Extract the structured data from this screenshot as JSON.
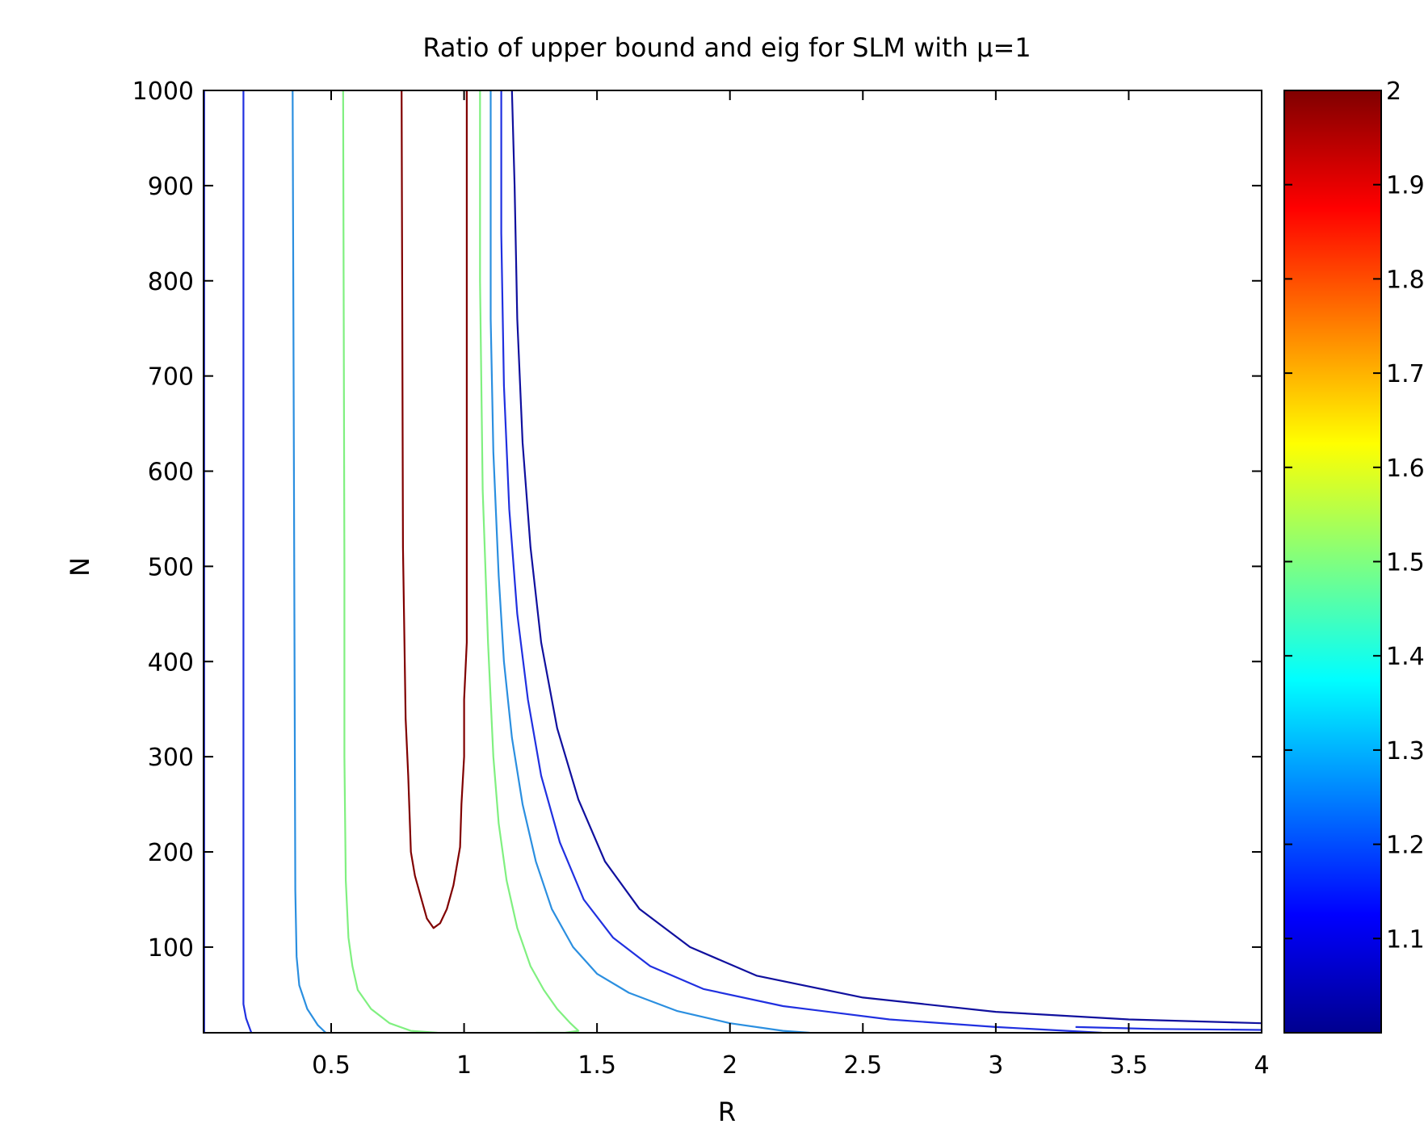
{
  "chart_data": {
    "type": "contour",
    "title": "Ratio of upper bound and eig for SLM with μ=1",
    "xlabel": "R",
    "ylabel": "N",
    "xlim": [
      0.02,
      4
    ],
    "ylim": [
      10,
      1000
    ],
    "grid": false,
    "x_ticks": [
      0.5,
      1,
      1.5,
      2,
      2.5,
      3,
      3.5,
      4
    ],
    "x_tick_labels": [
      "0.5",
      "1",
      "1.5",
      "2",
      "2.5",
      "3",
      "3.5",
      "4"
    ],
    "y_ticks": [
      100,
      200,
      300,
      400,
      500,
      600,
      700,
      800,
      900,
      1000
    ],
    "y_tick_labels": [
      "100",
      "200",
      "300",
      "400",
      "500",
      "600",
      "700",
      "800",
      "900",
      "1000"
    ],
    "colorbar": {
      "placement": "right",
      "range": [
        1.0,
        2.0
      ],
      "ticks": [
        1.1,
        1.2,
        1.3,
        1.4,
        1.5,
        1.6,
        1.7,
        1.8,
        1.9,
        2
      ],
      "tick_labels": [
        "1.1",
        "1.2",
        "1.3",
        "1.4",
        "1.5",
        "1.6",
        "1.7",
        "1.8",
        "1.9",
        "2"
      ],
      "colormap": "jet"
    },
    "contours": [
      {
        "level": 1.05,
        "color": "#0010d8",
        "points": [
          [
            0.022,
            1000
          ],
          [
            0.022,
            10
          ]
        ]
      },
      {
        "level": 1.15,
        "color": "#2030e0",
        "points": [
          [
            0.17,
            1000
          ],
          [
            0.17,
            500
          ],
          [
            0.17,
            40
          ],
          [
            0.18,
            25
          ],
          [
            0.2,
            10
          ]
        ]
      },
      {
        "level": 1.3,
        "color": "#2b8fe0",
        "points": [
          [
            0.355,
            1000
          ],
          [
            0.36,
            600
          ],
          [
            0.365,
            160
          ],
          [
            0.37,
            90
          ],
          [
            0.38,
            60
          ],
          [
            0.41,
            35
          ],
          [
            0.45,
            18
          ],
          [
            0.48,
            10
          ]
        ]
      },
      {
        "level": 1.5,
        "color": "#80f080",
        "points": [
          [
            0.545,
            1000
          ],
          [
            0.55,
            500
          ],
          [
            0.55,
            300
          ],
          [
            0.555,
            170
          ],
          [
            0.565,
            110
          ],
          [
            0.58,
            80
          ],
          [
            0.6,
            55
          ],
          [
            0.65,
            35
          ],
          [
            0.72,
            20
          ],
          [
            0.8,
            12
          ],
          [
            0.9,
            10
          ]
        ]
      },
      {
        "level": 2.0,
        "color": "#800000",
        "points": [
          [
            0.765,
            1000
          ],
          [
            0.77,
            520
          ],
          [
            0.78,
            340
          ],
          [
            0.79,
            280
          ],
          [
            0.8,
            200
          ],
          [
            0.815,
            175
          ],
          [
            0.84,
            150
          ],
          [
            0.86,
            130
          ],
          [
            0.885,
            120
          ],
          [
            0.91,
            125
          ],
          [
            0.935,
            140
          ],
          [
            0.96,
            165
          ],
          [
            0.985,
            205
          ],
          [
            0.99,
            250
          ],
          [
            1.0,
            300
          ],
          [
            1.0,
            360
          ],
          [
            1.01,
            420
          ],
          [
            1.01,
            1000
          ]
        ]
      },
      {
        "level": 1.5,
        "color": "#80f080",
        "points": [
          [
            1.06,
            1000
          ],
          [
            1.06,
            800
          ],
          [
            1.07,
            580
          ],
          [
            1.09,
            420
          ],
          [
            1.11,
            300
          ],
          [
            1.13,
            230
          ],
          [
            1.16,
            170
          ],
          [
            1.2,
            120
          ],
          [
            1.25,
            80
          ],
          [
            1.3,
            55
          ],
          [
            1.35,
            35
          ],
          [
            1.4,
            20
          ],
          [
            1.43,
            12
          ],
          [
            1.38,
            10
          ],
          [
            1.27,
            10
          ]
        ]
      },
      {
        "level": 1.3,
        "color": "#2b8fe0",
        "points": [
          [
            1.1,
            1000
          ],
          [
            1.1,
            760
          ],
          [
            1.11,
            620
          ],
          [
            1.13,
            490
          ],
          [
            1.15,
            400
          ],
          [
            1.18,
            320
          ],
          [
            1.22,
            250
          ],
          [
            1.27,
            190
          ],
          [
            1.33,
            140
          ],
          [
            1.41,
            100
          ],
          [
            1.5,
            72
          ],
          [
            1.62,
            52
          ],
          [
            1.8,
            33
          ],
          [
            2.0,
            20
          ],
          [
            2.2,
            12
          ],
          [
            2.3,
            10
          ]
        ]
      },
      {
        "level": 1.15,
        "color": "#2030e0",
        "points": [
          [
            1.14,
            1000
          ],
          [
            1.14,
            850
          ],
          [
            1.15,
            690
          ],
          [
            1.17,
            560
          ],
          [
            1.2,
            450
          ],
          [
            1.24,
            360
          ],
          [
            1.29,
            280
          ],
          [
            1.36,
            210
          ],
          [
            1.45,
            150
          ],
          [
            1.56,
            110
          ],
          [
            1.7,
            80
          ],
          [
            1.9,
            56
          ],
          [
            2.2,
            38
          ],
          [
            2.6,
            24
          ],
          [
            3.0,
            16
          ],
          [
            3.4,
            10
          ]
        ]
      },
      {
        "level": 1.1,
        "color": "#10109e",
        "points": [
          [
            1.18,
            1000
          ],
          [
            1.19,
            900
          ],
          [
            1.2,
            760
          ],
          [
            1.22,
            630
          ],
          [
            1.25,
            520
          ],
          [
            1.29,
            420
          ],
          [
            1.35,
            330
          ],
          [
            1.43,
            255
          ],
          [
            1.53,
            190
          ],
          [
            1.66,
            140
          ],
          [
            1.85,
            100
          ],
          [
            2.1,
            70
          ],
          [
            2.5,
            47
          ],
          [
            3.0,
            32
          ],
          [
            3.5,
            24
          ],
          [
            4.0,
            20
          ]
        ]
      },
      {
        "level": 1.15,
        "color": "#2030e0",
        "points": [
          [
            3.3,
            16
          ],
          [
            3.6,
            14
          ],
          [
            4.0,
            13
          ]
        ]
      }
    ]
  }
}
